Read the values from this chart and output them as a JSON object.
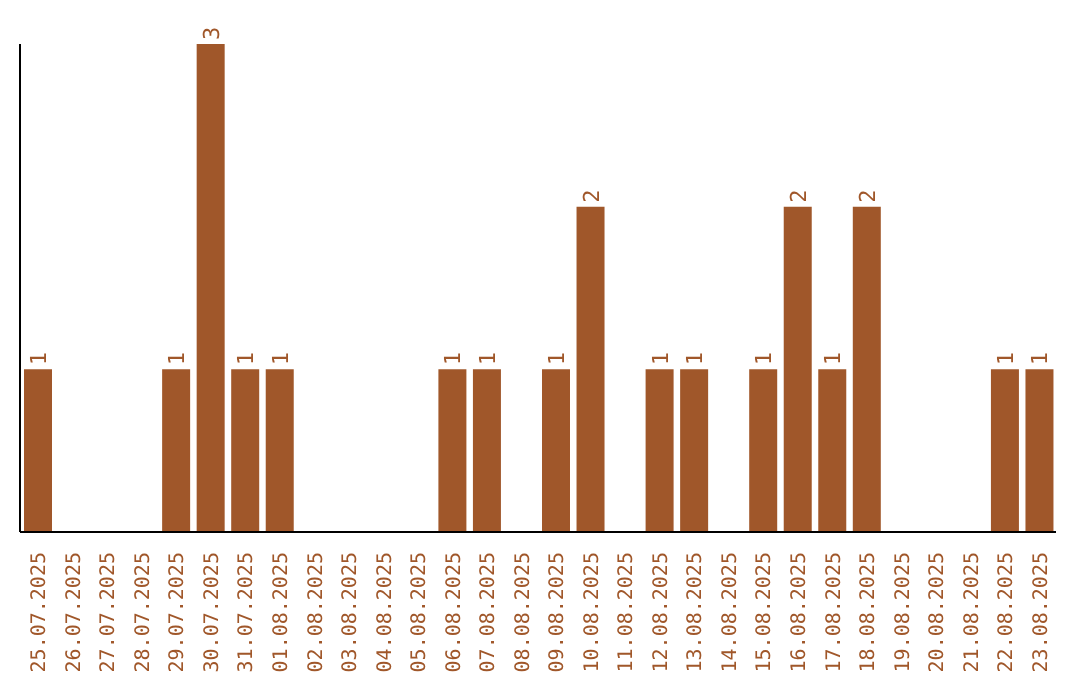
{
  "chart_data": {
    "type": "bar",
    "categories": [
      "25.07.2025",
      "26.07.2025",
      "27.07.2025",
      "28.07.2025",
      "29.07.2025",
      "30.07.2025",
      "31.07.2025",
      "01.08.2025",
      "02.08.2025",
      "03.08.2025",
      "04.08.2025",
      "05.08.2025",
      "06.08.2025",
      "07.08.2025",
      "08.08.2025",
      "09.08.2025",
      "10.08.2025",
      "11.08.2025",
      "12.08.2025",
      "13.08.2025",
      "14.08.2025",
      "15.08.2025",
      "16.08.2025",
      "17.08.2025",
      "18.08.2025",
      "19.08.2025",
      "20.08.2025",
      "21.08.2025",
      "22.08.2025",
      "23.08.2025"
    ],
    "values": [
      1,
      0,
      0,
      0,
      1,
      3,
      1,
      1,
      0,
      0,
      0,
      0,
      1,
      1,
      0,
      1,
      2,
      0,
      1,
      1,
      0,
      1,
      2,
      1,
      2,
      0,
      0,
      0,
      1,
      1
    ],
    "value_labels": [
      "1",
      null,
      null,
      null,
      "1",
      "3",
      "1",
      "1",
      null,
      null,
      null,
      null,
      "1",
      "1",
      null,
      "1",
      "2",
      null,
      "1",
      "1",
      null,
      "1",
      "2",
      "1",
      "2",
      null,
      null,
      null,
      "1",
      "1"
    ],
    "color": "#a0572a",
    "tick_labels": "x",
    "grid": false,
    "legend": false
  }
}
